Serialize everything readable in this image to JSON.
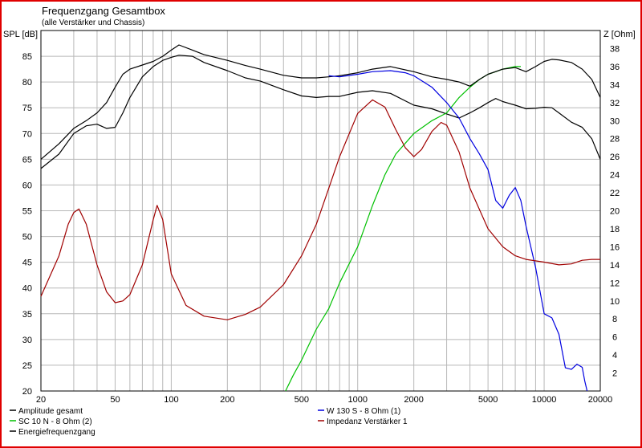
{
  "chart_data": {
    "type": "line",
    "title": "Frequenzgang Gesamtbox",
    "subtitle": "(alle Verstärker und Chassis)",
    "ylabel": "SPL [dB]",
    "y2label": "Z [Ohm]",
    "xscale": "log",
    "xlim": [
      20,
      20000
    ],
    "ylim": [
      20,
      90
    ],
    "y2lim": [
      0,
      40
    ],
    "grid": true,
    "legend_position": "bottom",
    "x_ticks": [
      20,
      50,
      100,
      200,
      500,
      1000,
      2000,
      5000,
      10000,
      20000
    ],
    "y_ticks": [
      20,
      25,
      30,
      35,
      40,
      45,
      50,
      55,
      60,
      65,
      70,
      75,
      80,
      85
    ],
    "y2_ticks": [
      2,
      4,
      6,
      8,
      10,
      12,
      14,
      16,
      18,
      20,
      22,
      24,
      26,
      28,
      30,
      32,
      34,
      36,
      38
    ],
    "series": [
      {
        "name": "Amplitude gesamt",
        "color": "#000000",
        "axis": "left",
        "points": [
          [
            20,
            63.2
          ],
          [
            25,
            66
          ],
          [
            30,
            70
          ],
          [
            35,
            71.5
          ],
          [
            40,
            71.8
          ],
          [
            45,
            71
          ],
          [
            50,
            71.2
          ],
          [
            55,
            74
          ],
          [
            60,
            77
          ],
          [
            70,
            81
          ],
          [
            80,
            83
          ],
          [
            90,
            84.2
          ],
          [
            100,
            84.8
          ],
          [
            110,
            85.2
          ],
          [
            130,
            85
          ],
          [
            150,
            83.8
          ],
          [
            200,
            82.2
          ],
          [
            250,
            80.8
          ],
          [
            300,
            80.2
          ],
          [
            400,
            78.5
          ],
          [
            500,
            77.3
          ],
          [
            600,
            77
          ],
          [
            700,
            77.2
          ],
          [
            800,
            77.2
          ],
          [
            1000,
            78
          ],
          [
            1200,
            78.3
          ],
          [
            1500,
            77.8
          ],
          [
            2000,
            75.5
          ],
          [
            2500,
            74.8
          ],
          [
            3000,
            73.8
          ],
          [
            3500,
            73
          ],
          [
            4000,
            74
          ],
          [
            4500,
            75
          ],
          [
            5000,
            76
          ],
          [
            5500,
            76.8
          ],
          [
            6000,
            76.2
          ],
          [
            7000,
            75.5
          ],
          [
            8000,
            74.8
          ],
          [
            9000,
            74.9
          ],
          [
            10000,
            75.1
          ],
          [
            11000,
            75
          ],
          [
            12000,
            74
          ],
          [
            14000,
            72.2
          ],
          [
            16000,
            71.2
          ],
          [
            18000,
            69
          ],
          [
            20000,
            65
          ]
        ]
      },
      {
        "name": "SC 10 N - 8 Ohm (2)",
        "color": "#00c000",
        "axis": "left",
        "points": [
          [
            410,
            20
          ],
          [
            450,
            23
          ],
          [
            500,
            26
          ],
          [
            600,
            32
          ],
          [
            700,
            36
          ],
          [
            800,
            41
          ],
          [
            1000,
            48
          ],
          [
            1200,
            56
          ],
          [
            1400,
            62
          ],
          [
            1600,
            66
          ],
          [
            2000,
            70
          ],
          [
            2500,
            72.5
          ],
          [
            3000,
            74
          ],
          [
            3500,
            77
          ],
          [
            4000,
            79
          ],
          [
            4500,
            80.5
          ],
          [
            5000,
            81.5
          ],
          [
            5500,
            82
          ],
          [
            6000,
            82.5
          ],
          [
            7000,
            83
          ],
          [
            7500,
            83
          ]
        ]
      },
      {
        "name": "Energiefrequenzgang",
        "color": "#000000",
        "axis": "left",
        "points": [
          [
            20,
            65
          ],
          [
            25,
            68
          ],
          [
            30,
            71
          ],
          [
            35,
            72.5
          ],
          [
            40,
            74
          ],
          [
            45,
            76
          ],
          [
            50,
            79
          ],
          [
            55,
            81.5
          ],
          [
            60,
            82.5
          ],
          [
            70,
            83.3
          ],
          [
            80,
            84
          ],
          [
            90,
            85
          ],
          [
            100,
            86.2
          ],
          [
            110,
            87.2
          ],
          [
            130,
            86.2
          ],
          [
            150,
            85.3
          ],
          [
            200,
            84.2
          ],
          [
            250,
            83.2
          ],
          [
            300,
            82.5
          ],
          [
            400,
            81.3
          ],
          [
            500,
            80.8
          ],
          [
            600,
            80.8
          ],
          [
            700,
            81
          ],
          [
            800,
            81.2
          ],
          [
            1000,
            81.8
          ],
          [
            1200,
            82.5
          ],
          [
            1500,
            83
          ],
          [
            2000,
            82
          ],
          [
            2500,
            81
          ],
          [
            3000,
            80.5
          ],
          [
            3500,
            80
          ],
          [
            4000,
            79.2
          ],
          [
            4500,
            80.5
          ],
          [
            5000,
            81.5
          ],
          [
            6000,
            82.5
          ],
          [
            7000,
            82.8
          ],
          [
            8000,
            82
          ],
          [
            9000,
            83
          ],
          [
            10000,
            84
          ],
          [
            11000,
            84.4
          ],
          [
            12000,
            84.3
          ],
          [
            14000,
            83.8
          ],
          [
            16000,
            82.5
          ],
          [
            18000,
            80.5
          ],
          [
            20000,
            77
          ]
        ]
      },
      {
        "name": "W 130 S - 8 Ohm (1)",
        "color": "#0000e0",
        "axis": "left",
        "points": [
          [
            700,
            81.2
          ],
          [
            800,
            81
          ],
          [
            1000,
            81.5
          ],
          [
            1200,
            82
          ],
          [
            1500,
            82.2
          ],
          [
            1800,
            81.8
          ],
          [
            2000,
            81.2
          ],
          [
            2500,
            79
          ],
          [
            3000,
            76
          ],
          [
            3500,
            73
          ],
          [
            4000,
            69
          ],
          [
            4500,
            66
          ],
          [
            5000,
            63
          ],
          [
            5500,
            57
          ],
          [
            6000,
            55.5
          ],
          [
            6500,
            58
          ],
          [
            7000,
            59.5
          ],
          [
            7500,
            57
          ],
          [
            8000,
            52
          ],
          [
            9000,
            44
          ],
          [
            10000,
            35
          ],
          [
            11000,
            34.2
          ],
          [
            12000,
            31
          ],
          [
            13000,
            24.5
          ],
          [
            14000,
            24.2
          ],
          [
            15000,
            25.2
          ],
          [
            16000,
            24.6
          ],
          [
            16500,
            22
          ],
          [
            17000,
            20
          ]
        ]
      },
      {
        "name": "Impedanz Verstärker 1",
        "color": "#a00000",
        "axis": "right",
        "points": [
          [
            20,
            10.5
          ],
          [
            25,
            15
          ],
          [
            28,
            18.5
          ],
          [
            30,
            19.8
          ],
          [
            32,
            20.2
          ],
          [
            35,
            18.5
          ],
          [
            40,
            14
          ],
          [
            45,
            11
          ],
          [
            50,
            9.8
          ],
          [
            55,
            10
          ],
          [
            60,
            10.7
          ],
          [
            70,
            14
          ],
          [
            80,
            19
          ],
          [
            84,
            20.6
          ],
          [
            90,
            19
          ],
          [
            100,
            13
          ],
          [
            120,
            9.5
          ],
          [
            150,
            8.3
          ],
          [
            200,
            7.9
          ],
          [
            250,
            8.5
          ],
          [
            300,
            9.3
          ],
          [
            400,
            11.8
          ],
          [
            500,
            15
          ],
          [
            600,
            18.5
          ],
          [
            700,
            22.5
          ],
          [
            800,
            26
          ],
          [
            1000,
            30.8
          ],
          [
            1200,
            32.3
          ],
          [
            1400,
            31.5
          ],
          [
            1600,
            29
          ],
          [
            1800,
            27
          ],
          [
            2000,
            26
          ],
          [
            2200,
            26.8
          ],
          [
            2500,
            28.8
          ],
          [
            2800,
            29.8
          ],
          [
            3000,
            29.5
          ],
          [
            3500,
            26.5
          ],
          [
            4000,
            22.5
          ],
          [
            5000,
            18
          ],
          [
            6000,
            16
          ],
          [
            7000,
            15
          ],
          [
            8000,
            14.6
          ],
          [
            10000,
            14.3
          ],
          [
            12000,
            14
          ],
          [
            14000,
            14.1
          ],
          [
            16000,
            14.5
          ],
          [
            18000,
            14.6
          ],
          [
            20000,
            14.6
          ]
        ]
      }
    ]
  }
}
